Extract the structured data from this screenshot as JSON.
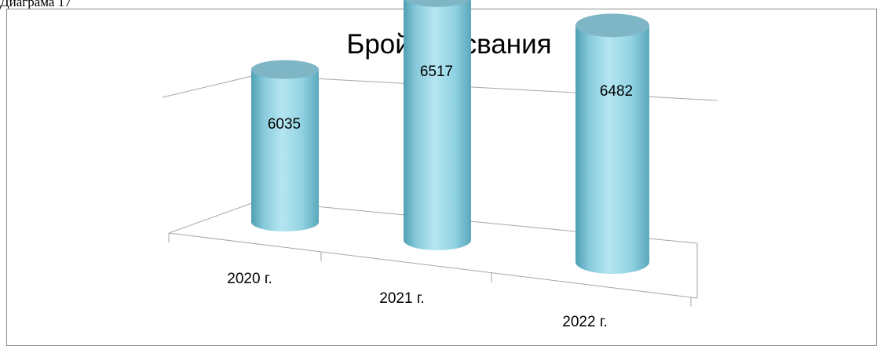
{
  "caption": "Диаграма 17",
  "chart_data": {
    "type": "bar",
    "style": "3d-cylinder",
    "title": "Брой вписвания",
    "categories": [
      "2020 г.",
      "2021 г.",
      "2022 г."
    ],
    "series": [
      {
        "values": [
          6035,
          6517,
          6482
        ]
      }
    ],
    "data_labels": [
      "6035",
      "6517",
      "6482"
    ],
    "legend": "none",
    "grid": false,
    "colors": {
      "cylinder": "#92d3e3",
      "cylinder_dark": "#4f9fb3",
      "cylinder_top": "#7fb6c6",
      "axis": "#a6a6a6"
    }
  }
}
